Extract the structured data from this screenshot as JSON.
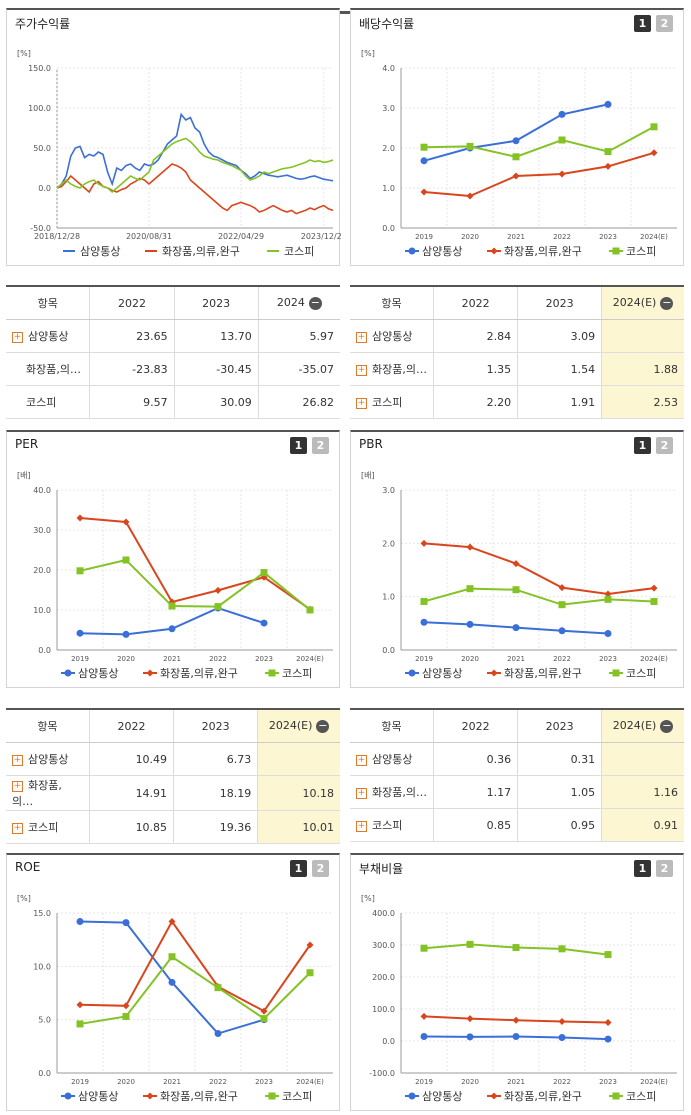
{
  "series_names": [
    "삼양통상",
    "화장품,의류,완구",
    "코스피"
  ],
  "colors": [
    "#3a6fd8",
    "#d9461e",
    "#84c225"
  ],
  "page_buttons": [
    "1",
    "2"
  ],
  "panels": {
    "price": {
      "title": "주가수익률"
    },
    "dividend": {
      "title": "배당수익률"
    },
    "per": {
      "title": "PER"
    },
    "pbr": {
      "title": "PBR"
    },
    "roe": {
      "title": "ROE"
    },
    "debt": {
      "title": "부채비율"
    }
  },
  "tables": {
    "price": {
      "headers": [
        "항목",
        "2022",
        "2023",
        "2024"
      ],
      "rows": [
        {
          "label": "삼양통상",
          "plus": true,
          "values": [
            "23.65",
            "13.70",
            "5.97"
          ]
        },
        {
          "label": "화장품,의…",
          "plus": false,
          "values": [
            "-23.83",
            "-30.45",
            "-35.07"
          ]
        },
        {
          "label": "코스피",
          "plus": false,
          "values": [
            "9.57",
            "30.09",
            "26.82"
          ]
        }
      ]
    },
    "dividend": {
      "headers": [
        "항목",
        "2022",
        "2023",
        "2024(E)"
      ],
      "rows": [
        {
          "label": "삼양통상",
          "plus": true,
          "values": [
            "2.84",
            "3.09",
            ""
          ]
        },
        {
          "label": "화장품,의…",
          "plus": true,
          "values": [
            "1.35",
            "1.54",
            "1.88"
          ]
        },
        {
          "label": "코스피",
          "plus": true,
          "values": [
            "2.20",
            "1.91",
            "2.53"
          ]
        }
      ]
    },
    "per": {
      "headers": [
        "항목",
        "2022",
        "2023",
        "2024(E)"
      ],
      "rows": [
        {
          "label": "삼양통상",
          "plus": true,
          "values": [
            "10.49",
            "6.73",
            ""
          ]
        },
        {
          "label": "화장품,의…",
          "plus": true,
          "values": [
            "14.91",
            "18.19",
            "10.18"
          ]
        },
        {
          "label": "코스피",
          "plus": true,
          "values": [
            "10.85",
            "19.36",
            "10.01"
          ]
        }
      ]
    },
    "pbr": {
      "headers": [
        "항목",
        "2022",
        "2023",
        "2024(E)"
      ],
      "rows": [
        {
          "label": "삼양통상",
          "plus": true,
          "values": [
            "0.36",
            "0.31",
            ""
          ]
        },
        {
          "label": "화장품,의…",
          "plus": true,
          "values": [
            "1.17",
            "1.05",
            "1.16"
          ]
        },
        {
          "label": "코스피",
          "plus": true,
          "values": [
            "0.85",
            "0.95",
            "0.91"
          ]
        }
      ]
    }
  },
  "chart_data": [
    {
      "id": "price",
      "type": "line",
      "ylabel": "[%]",
      "ylim": [
        -50,
        150
      ],
      "yticks": [
        "150.0",
        "100.0",
        "50.0",
        "0.0",
        "-50.0"
      ],
      "xticks": [
        "2018/12/28",
        "2020/08/31",
        "2022/04/29",
        "2023/12/28"
      ],
      "x_range": [
        0,
        60
      ],
      "xtick_pos": [
        0,
        20,
        40,
        58
      ],
      "series": [
        {
          "name": "삼양통상",
          "values": [
            0,
            5,
            15,
            40,
            50,
            52,
            38,
            42,
            40,
            45,
            42,
            20,
            5,
            25,
            22,
            28,
            30,
            25,
            22,
            30,
            28,
            30,
            35,
            45,
            55,
            60,
            65,
            92,
            85,
            88,
            75,
            70,
            55,
            45,
            40,
            38,
            35,
            32,
            30,
            28,
            22,
            18,
            12,
            15,
            20,
            18,
            16,
            15,
            14,
            15,
            16,
            14,
            12,
            11,
            12,
            14,
            15,
            13,
            11,
            10,
            9
          ]
        },
        {
          "name": "화장품,의류,완구",
          "values": [
            0,
            2,
            8,
            15,
            10,
            5,
            0,
            -5,
            5,
            8,
            2,
            0,
            -3,
            -5,
            -2,
            0,
            5,
            8,
            12,
            10,
            5,
            10,
            15,
            20,
            25,
            30,
            28,
            25,
            20,
            10,
            5,
            0,
            -5,
            -10,
            -15,
            -20,
            -25,
            -28,
            -22,
            -20,
            -18,
            -20,
            -22,
            -25,
            -30,
            -28,
            -25,
            -22,
            -25,
            -28,
            -30,
            -28,
            -32,
            -30,
            -28,
            -25,
            -27,
            -24,
            -22,
            -26,
            -28
          ]
        },
        {
          "name": "코스피",
          "values": [
            0,
            5,
            10,
            5,
            2,
            0,
            5,
            8,
            10,
            5,
            2,
            0,
            -5,
            0,
            5,
            10,
            15,
            12,
            10,
            15,
            20,
            35,
            40,
            45,
            50,
            55,
            58,
            60,
            62,
            58,
            52,
            45,
            40,
            38,
            36,
            35,
            32,
            30,
            28,
            25,
            22,
            15,
            10,
            12,
            15,
            20,
            18,
            20,
            22,
            24,
            25,
            26,
            28,
            30,
            32,
            35,
            33,
            34,
            32,
            33,
            35
          ]
        }
      ]
    },
    {
      "id": "dividend",
      "type": "line",
      "ylabel": "[%]",
      "ylim": [
        0,
        4
      ],
      "yticks": [
        "4.0",
        "3.0",
        "2.0",
        "1.0",
        "0.0"
      ],
      "categories": [
        "2019",
        "2020",
        "2021",
        "2022",
        "2023",
        "2024(E)"
      ],
      "series": [
        {
          "name": "삼양통상",
          "values": [
            1.68,
            2.0,
            2.18,
            2.84,
            3.09,
            null
          ]
        },
        {
          "name": "화장품,의류,완구",
          "values": [
            0.9,
            0.8,
            1.3,
            1.35,
            1.54,
            1.88
          ]
        },
        {
          "name": "코스피",
          "values": [
            2.02,
            2.04,
            1.78,
            2.2,
            1.91,
            2.53
          ]
        }
      ]
    },
    {
      "id": "per",
      "type": "line",
      "ylabel": "[배]",
      "ylim": [
        0,
        40
      ],
      "yticks": [
        "40.0",
        "30.0",
        "20.0",
        "10.0",
        "0.0"
      ],
      "categories": [
        "2019",
        "2020",
        "2021",
        "2022",
        "2023",
        "2024(E)"
      ],
      "series": [
        {
          "name": "삼양통상",
          "values": [
            4.2,
            3.9,
            5.3,
            10.49,
            6.73,
            null
          ]
        },
        {
          "name": "화장품,의류,완구",
          "values": [
            33.0,
            32.0,
            12.0,
            14.91,
            18.19,
            10.18
          ]
        },
        {
          "name": "코스피",
          "values": [
            19.8,
            22.5,
            11.0,
            10.85,
            19.36,
            10.01
          ]
        }
      ]
    },
    {
      "id": "pbr",
      "type": "line",
      "ylabel": "[배]",
      "ylim": [
        0,
        3
      ],
      "yticks": [
        "3.0",
        "2.0",
        "1.0",
        "0.0"
      ],
      "categories": [
        "2019",
        "2020",
        "2021",
        "2022",
        "2023",
        "2024(E)"
      ],
      "series": [
        {
          "name": "삼양통상",
          "values": [
            0.52,
            0.48,
            0.42,
            0.36,
            0.31,
            null
          ]
        },
        {
          "name": "화장품,의류,완구",
          "values": [
            2.0,
            1.93,
            1.62,
            1.17,
            1.05,
            1.16
          ]
        },
        {
          "name": "코스피",
          "values": [
            0.91,
            1.15,
            1.13,
            0.85,
            0.95,
            0.91
          ]
        }
      ]
    },
    {
      "id": "roe",
      "type": "line",
      "ylabel": "[%]",
      "ylim": [
        0,
        15
      ],
      "yticks": [
        "15.0",
        "10.0",
        "5.0",
        "0.0"
      ],
      "categories": [
        "2019",
        "2020",
        "2021",
        "2022",
        "2023",
        "2024(E)"
      ],
      "series": [
        {
          "name": "삼양통상",
          "values": [
            14.2,
            14.1,
            8.5,
            3.7,
            5.0,
            null
          ]
        },
        {
          "name": "화장품,의류,완구",
          "values": [
            6.4,
            6.3,
            14.2,
            8.1,
            5.8,
            12.0
          ]
        },
        {
          "name": "코스피",
          "values": [
            4.6,
            5.3,
            10.9,
            8.0,
            5.1,
            9.4
          ]
        }
      ]
    },
    {
      "id": "debt",
      "type": "line",
      "ylabel": "[%]",
      "ylim": [
        -100,
        400
      ],
      "yticks": [
        "400.0",
        "300.0",
        "200.0",
        "100.0",
        "0.0",
        "-100.0"
      ],
      "categories": [
        "2019",
        "2020",
        "2021",
        "2022",
        "2023",
        "2024(E)"
      ],
      "series": [
        {
          "name": "삼양통상",
          "values": [
            14,
            13,
            14,
            11,
            6,
            null
          ]
        },
        {
          "name": "화장품,의류,완구",
          "values": [
            77,
            70,
            65,
            61,
            58,
            null
          ]
        },
        {
          "name": "코스피",
          "values": [
            290,
            302,
            292,
            288,
            270,
            null
          ]
        }
      ]
    }
  ]
}
